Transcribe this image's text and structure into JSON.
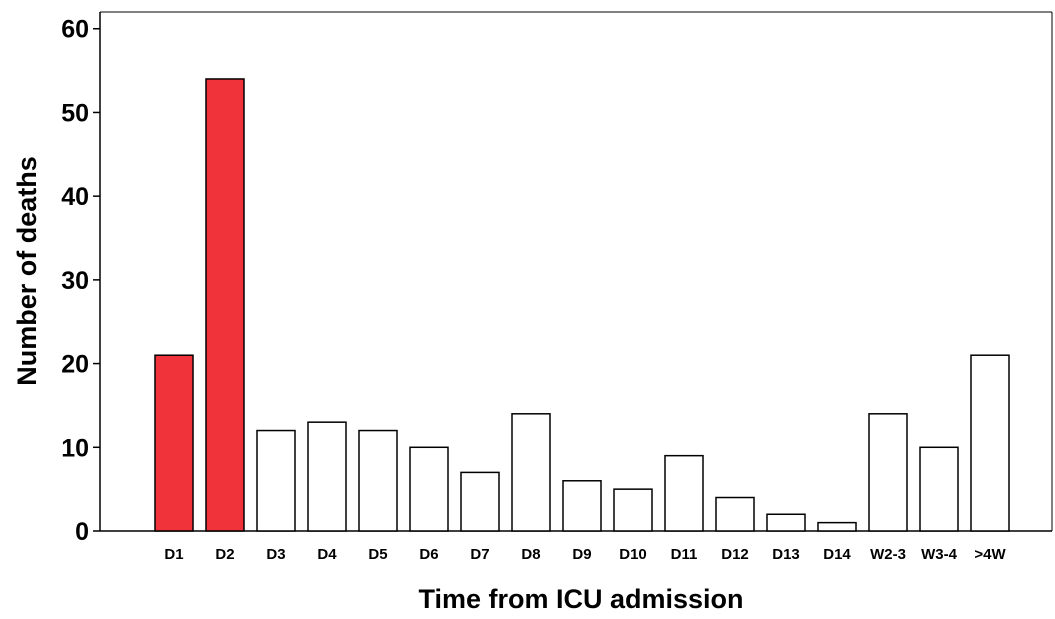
{
  "chart_data": {
    "type": "bar",
    "title": "",
    "xlabel": "Time from ICU admission",
    "ylabel": "Number of deaths",
    "ylim": [
      0,
      62
    ],
    "yticks": [
      0,
      10,
      20,
      30,
      40,
      50,
      60
    ],
    "grid": false,
    "categories": [
      "D1",
      "D2",
      "D3",
      "D4",
      "D5",
      "D6",
      "D7",
      "D8",
      "D9",
      "D10",
      "D11",
      "D12",
      "D13",
      "D14",
      "W2-3",
      "W3-4",
      ">4W"
    ],
    "values": [
      21,
      54,
      12,
      13,
      12,
      10,
      7,
      14,
      6,
      5,
      9,
      4,
      2,
      1,
      14,
      10,
      21
    ],
    "highlight_color": "#f0323a",
    "default_color": "#ffffff",
    "highlighted_categories": [
      "D1",
      "D2"
    ]
  }
}
